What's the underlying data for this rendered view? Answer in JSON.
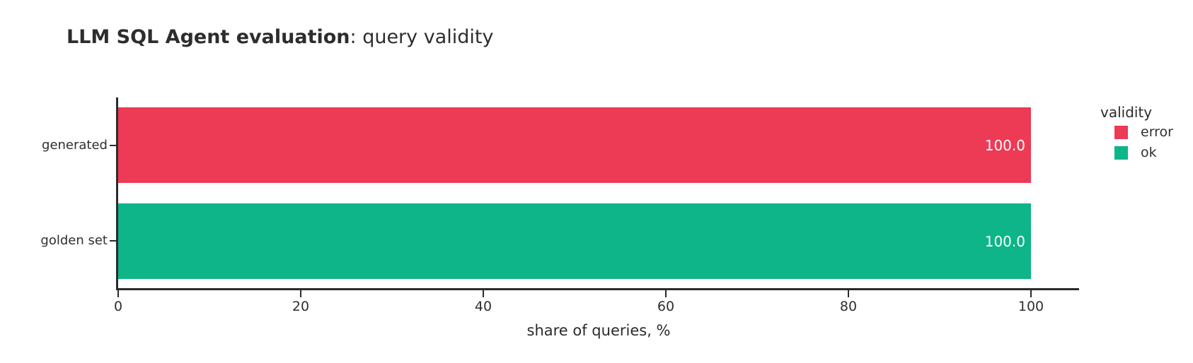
{
  "title": {
    "bold": "LLM SQL Agent evaluation",
    "rest": ": query validity"
  },
  "chart_data": {
    "type": "bar",
    "orientation": "horizontal",
    "title": "LLM SQL Agent evaluation: query validity",
    "categories": [
      "generated",
      "golden set"
    ],
    "rows": [
      {
        "category": "generated",
        "series": "error",
        "value": 100.0,
        "label": "100.0",
        "color": "#ed3a55"
      },
      {
        "category": "golden set",
        "series": "ok",
        "value": 100.0,
        "label": "100.0",
        "color": "#0db588"
      }
    ],
    "xlabel": "share of queries, %",
    "xticks": [
      "0",
      "20",
      "40",
      "60",
      "80",
      "100"
    ],
    "xlim": [
      0,
      105
    ],
    "grid": false,
    "legend": {
      "title": "validity",
      "position": "right",
      "entries": [
        {
          "label": "error",
          "color": "#ed3a55"
        },
        {
          "label": "ok",
          "color": "#0db588"
        }
      ]
    },
    "colors": {
      "axis": "#2b2b2b",
      "tick_text": "#2f2f2f",
      "bar_label_text": "#ffffff",
      "background": "#ffffff"
    }
  }
}
